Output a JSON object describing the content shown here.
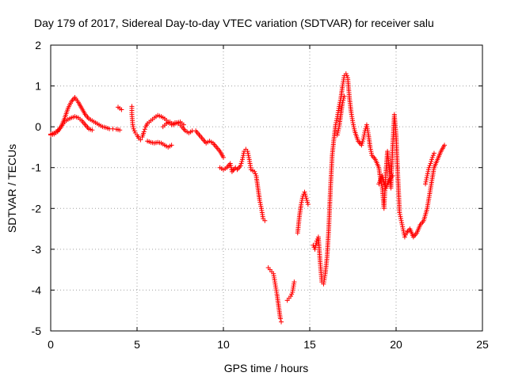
{
  "chart_data": {
    "type": "scatter",
    "title": "Day 179 of 2017, Sidereal Day-to-day VTEC variation (SDTVAR) for receiver salu",
    "xlabel": "GPS time / hours",
    "ylabel": "SDTVAR / TECUs",
    "xlim": [
      0,
      25
    ],
    "ylim": [
      -5,
      2
    ],
    "xticks": [
      "0",
      "5",
      "10",
      "15",
      "20",
      "25"
    ],
    "yticks": [
      "-5",
      "-4",
      "-3",
      "-2",
      "-1",
      "0",
      "1",
      "2"
    ],
    "grid": true,
    "marker": "+",
    "series": [
      {
        "name": "SDTVAR",
        "color": "#ff0000",
        "segments": [
          [
            [
              0.0,
              -0.18
            ],
            [
              0.2,
              -0.15
            ],
            [
              0.4,
              -0.1
            ],
            [
              0.6,
              0.0
            ],
            [
              0.8,
              0.2
            ],
            [
              1.0,
              0.45
            ],
            [
              1.2,
              0.62
            ],
            [
              1.4,
              0.72
            ],
            [
              1.6,
              0.6
            ],
            [
              1.8,
              0.45
            ],
            [
              2.0,
              0.3
            ],
            [
              2.2,
              0.2
            ],
            [
              2.4,
              0.15
            ],
            [
              2.6,
              0.1
            ],
            [
              2.8,
              0.05
            ],
            [
              3.0,
              0.0
            ],
            [
              3.2,
              -0.02
            ],
            [
              3.4,
              -0.05
            ],
            [
              3.6,
              -0.05
            ],
            [
              3.8,
              -0.06
            ],
            [
              4.0,
              -0.08
            ]
          ],
          [
            [
              0.0,
              -0.2
            ],
            [
              0.2,
              -0.18
            ],
            [
              0.4,
              -0.12
            ],
            [
              0.6,
              0.0
            ],
            [
              0.8,
              0.12
            ],
            [
              1.0,
              0.18
            ],
            [
              1.2,
              0.22
            ],
            [
              1.4,
              0.25
            ],
            [
              1.6,
              0.22
            ],
            [
              1.8,
              0.15
            ],
            [
              2.0,
              0.05
            ],
            [
              2.2,
              -0.05
            ],
            [
              2.4,
              -0.08
            ]
          ],
          [
            [
              3.9,
              0.48
            ],
            [
              4.0,
              0.45
            ],
            [
              4.1,
              0.42
            ]
          ],
          [
            [
              4.7,
              0.5
            ],
            [
              4.7,
              0.3
            ],
            [
              4.75,
              0.05
            ],
            [
              4.8,
              -0.05
            ],
            [
              4.9,
              -0.15
            ],
            [
              5.0,
              -0.2
            ],
            [
              5.1,
              -0.28
            ],
            [
              5.2,
              -0.32
            ],
            [
              5.3,
              -0.25
            ],
            [
              5.4,
              -0.12
            ],
            [
              5.5,
              0.0
            ],
            [
              5.6,
              0.08
            ],
            [
              5.8,
              0.15
            ],
            [
              6.0,
              0.22
            ],
            [
              6.2,
              0.28
            ],
            [
              6.4,
              0.25
            ],
            [
              6.6,
              0.2
            ],
            [
              6.8,
              0.12
            ],
            [
              7.0,
              0.05
            ],
            [
              7.2,
              0.1
            ],
            [
              7.4,
              0.08
            ],
            [
              7.6,
              0.0
            ],
            [
              7.8,
              -0.1
            ],
            [
              8.0,
              -0.15
            ],
            [
              8.2,
              -0.1
            ],
            [
              8.4,
              -0.1
            ],
            [
              8.6,
              -0.2
            ],
            [
              8.8,
              -0.3
            ],
            [
              9.0,
              -0.4
            ],
            [
              9.2,
              -0.35
            ],
            [
              9.4,
              -0.4
            ],
            [
              9.6,
              -0.5
            ],
            [
              9.8,
              -0.6
            ],
            [
              10.0,
              -0.75
            ]
          ],
          [
            [
              5.6,
              -0.35
            ],
            [
              5.8,
              -0.38
            ],
            [
              6.0,
              -0.4
            ],
            [
              6.2,
              -0.38
            ],
            [
              6.4,
              -0.4
            ],
            [
              6.6,
              -0.45
            ],
            [
              6.8,
              -0.5
            ],
            [
              7.0,
              -0.45
            ]
          ],
          [
            [
              6.5,
              0.0
            ],
            [
              6.7,
              0.08
            ],
            [
              6.9,
              0.12
            ],
            [
              7.1,
              0.05
            ],
            [
              7.3,
              0.1
            ],
            [
              7.5,
              0.12
            ],
            [
              7.7,
              0.05
            ]
          ],
          [
            [
              9.8,
              -1.0
            ],
            [
              10.0,
              -1.05
            ],
            [
              10.2,
              -1.0
            ],
            [
              10.4,
              -0.9
            ],
            [
              10.5,
              -1.1
            ],
            [
              10.7,
              -1.0
            ],
            [
              10.8,
              -1.05
            ],
            [
              11.0,
              -0.95
            ],
            [
              11.1,
              -0.8
            ],
            [
              11.2,
              -0.6
            ],
            [
              11.3,
              -0.55
            ],
            [
              11.4,
              -0.6
            ],
            [
              11.5,
              -0.8
            ],
            [
              11.6,
              -1.05
            ],
            [
              11.8,
              -1.1
            ],
            [
              11.9,
              -1.2
            ],
            [
              12.0,
              -1.5
            ],
            [
              12.1,
              -1.8
            ],
            [
              12.2,
              -2.0
            ],
            [
              12.3,
              -2.25
            ],
            [
              12.4,
              -2.3
            ]
          ],
          [
            [
              12.6,
              -3.45
            ],
            [
              12.7,
              -3.5
            ],
            [
              12.8,
              -3.55
            ],
            [
              12.9,
              -3.6
            ],
            [
              13.0,
              -3.85
            ],
            [
              13.1,
              -4.1
            ],
            [
              13.2,
              -4.4
            ],
            [
              13.3,
              -4.7
            ],
            [
              13.35,
              -4.78
            ]
          ],
          [
            [
              13.7,
              -4.25
            ],
            [
              13.8,
              -4.2
            ],
            [
              13.9,
              -4.15
            ],
            [
              14.0,
              -4.05
            ],
            [
              14.1,
              -3.8
            ]
          ],
          [
            [
              14.3,
              -2.6
            ],
            [
              14.4,
              -2.2
            ],
            [
              14.5,
              -1.9
            ],
            [
              14.6,
              -1.7
            ],
            [
              14.7,
              -1.6
            ],
            [
              14.8,
              -1.75
            ],
            [
              14.9,
              -1.9
            ]
          ],
          [
            [
              15.2,
              -2.9
            ],
            [
              15.3,
              -3.0
            ],
            [
              15.4,
              -2.8
            ],
            [
              15.5,
              -2.7
            ],
            [
              15.6,
              -3.3
            ],
            [
              15.7,
              -3.8
            ],
            [
              15.8,
              -3.85
            ],
            [
              15.9,
              -3.6
            ],
            [
              16.0,
              -3.2
            ],
            [
              16.1,
              -2.5
            ],
            [
              16.2,
              -1.5
            ],
            [
              16.3,
              -0.7
            ],
            [
              16.4,
              -0.3
            ],
            [
              16.5,
              0.05
            ],
            [
              16.6,
              0.25
            ],
            [
              16.7,
              0.5
            ],
            [
              16.8,
              0.7
            ],
            [
              16.9,
              1.0
            ],
            [
              17.0,
              1.25
            ],
            [
              17.1,
              1.3
            ],
            [
              17.2,
              1.2
            ],
            [
              17.3,
              0.7
            ],
            [
              17.4,
              0.35
            ],
            [
              17.5,
              0.1
            ],
            [
              17.6,
              -0.1
            ],
            [
              17.8,
              -0.35
            ],
            [
              18.0,
              -0.45
            ],
            [
              18.1,
              -0.3
            ],
            [
              18.2,
              -0.1
            ],
            [
              18.3,
              0.05
            ],
            [
              18.4,
              -0.2
            ],
            [
              18.5,
              -0.5
            ],
            [
              18.6,
              -0.7
            ],
            [
              18.8,
              -0.8
            ],
            [
              19.0,
              -1.0
            ],
            [
              19.1,
              -1.3
            ],
            [
              19.2,
              -1.5
            ],
            [
              19.3,
              -2.0
            ],
            [
              19.4,
              -1.2
            ],
            [
              19.5,
              -0.6
            ],
            [
              19.6,
              -1.0
            ],
            [
              19.7,
              -1.5
            ],
            [
              19.8,
              -0.5
            ],
            [
              19.9,
              0.3
            ],
            [
              20.0,
              -0.2
            ],
            [
              20.1,
              -1.2
            ],
            [
              20.2,
              -2.1
            ],
            [
              20.3,
              -2.3
            ],
            [
              20.4,
              -2.5
            ],
            [
              20.5,
              -2.7
            ],
            [
              20.6,
              -2.6
            ],
            [
              20.8,
              -2.5
            ],
            [
              21.0,
              -2.7
            ],
            [
              21.2,
              -2.6
            ],
            [
              21.4,
              -2.4
            ],
            [
              21.6,
              -2.3
            ],
            [
              21.8,
              -2.0
            ],
            [
              22.0,
              -1.5
            ],
            [
              22.2,
              -1.0
            ],
            [
              22.4,
              -0.8
            ],
            [
              22.6,
              -0.6
            ],
            [
              22.8,
              -0.45
            ]
          ],
          [
            [
              16.6,
              -0.2
            ],
            [
              16.7,
              0.0
            ],
            [
              16.8,
              0.3
            ],
            [
              16.9,
              0.6
            ],
            [
              17.0,
              0.75
            ]
          ],
          [
            [
              19.0,
              -1.4
            ],
            [
              19.2,
              -1.2
            ],
            [
              19.4,
              -1.5
            ],
            [
              19.6,
              -1.3
            ],
            [
              19.8,
              -1.2
            ]
          ],
          [
            [
              21.7,
              -1.4
            ],
            [
              21.8,
              -1.2
            ],
            [
              21.9,
              -1.0
            ],
            [
              22.0,
              -0.9
            ],
            [
              22.1,
              -0.75
            ],
            [
              22.2,
              -0.65
            ]
          ]
        ]
      }
    ]
  }
}
